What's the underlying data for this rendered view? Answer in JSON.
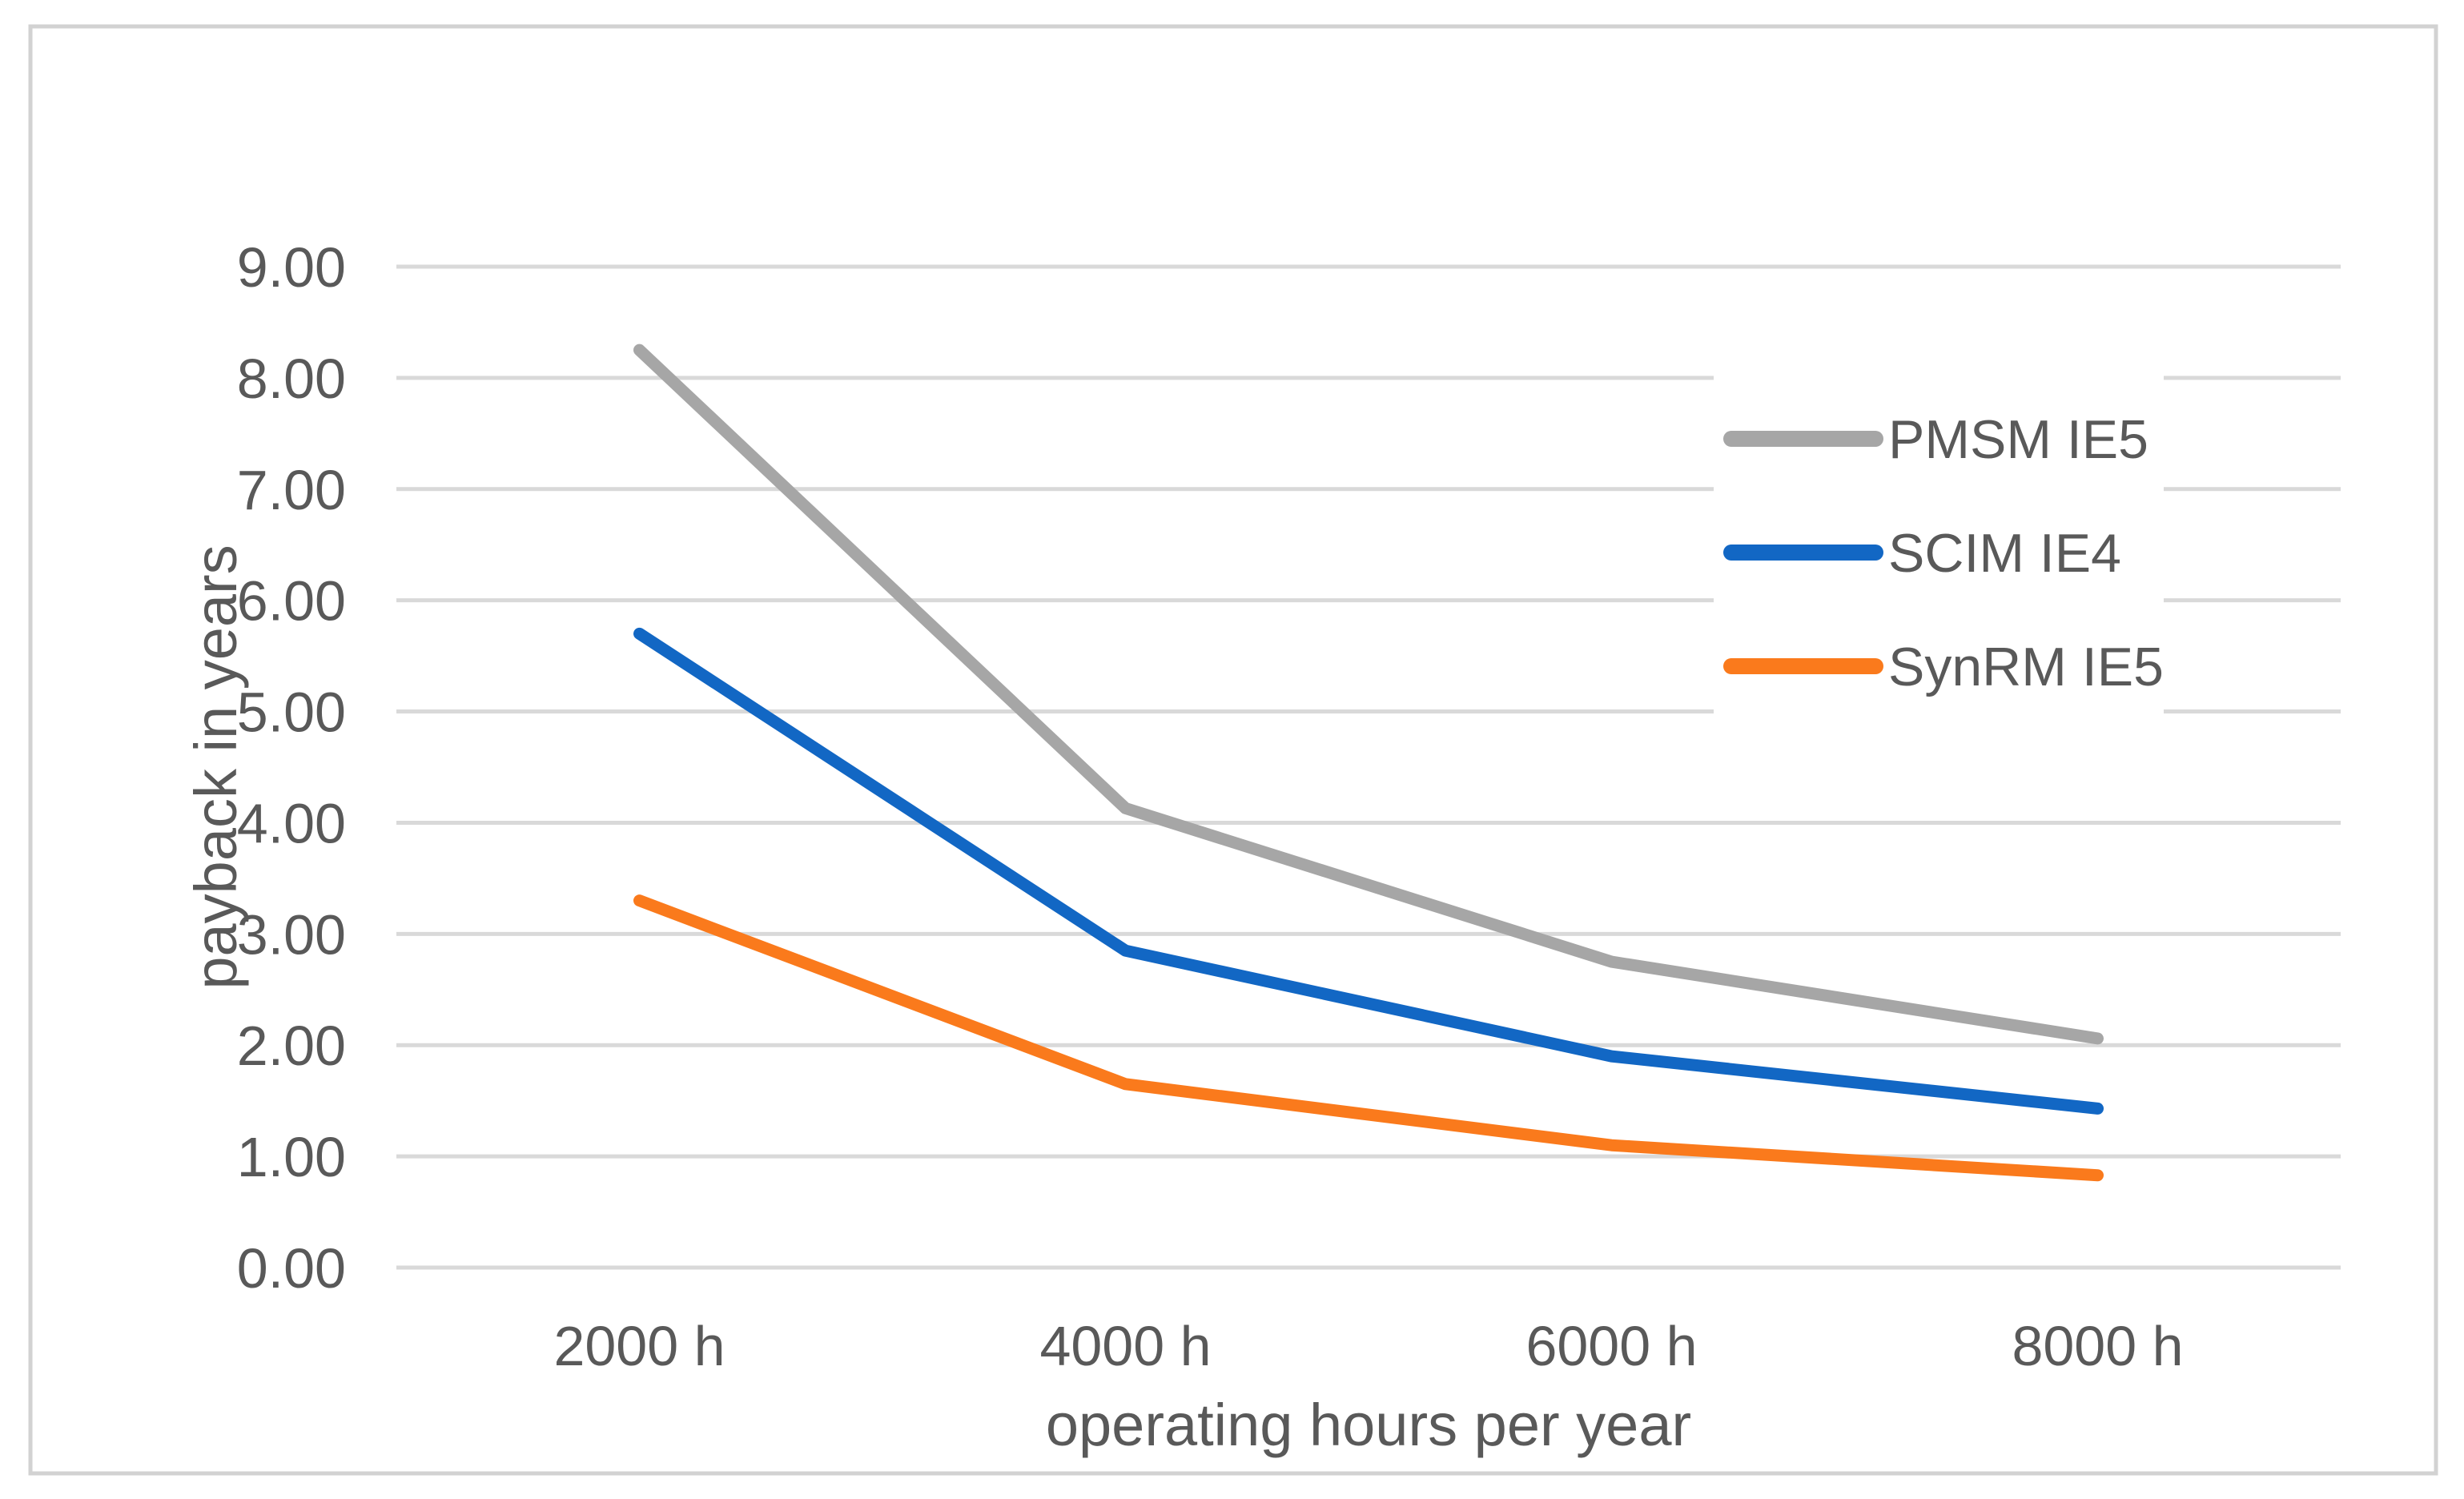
{
  "figure": {
    "background": "#FFFFFF",
    "border_color": "#D2D2D2"
  },
  "colors": {
    "gridline": "#D9D9D9",
    "axis_text": "#595959",
    "legend_background": "#FFFFFF"
  },
  "chart_data": {
    "type": "line",
    "title": "",
    "xlabel": "operating hours per year",
    "ylabel": "payback in years",
    "categories": [
      "2000 h",
      "4000 h",
      "6000 h",
      "8000 h"
    ],
    "series": [
      {
        "name": "PMSM IE5",
        "color": "#A6A6A6",
        "values": [
          8.25,
          4.13,
          2.75,
          2.06
        ]
      },
      {
        "name": "SCIM IE4",
        "color": "#1267C4",
        "values": [
          5.7,
          2.85,
          1.9,
          1.43
        ]
      },
      {
        "name": "SynRM IE5",
        "color": "#FA7A1C",
        "values": [
          3.3,
          1.65,
          1.1,
          0.83
        ]
      }
    ],
    "ylim": [
      0,
      9
    ],
    "ytick_step": 1,
    "ytick_labels": [
      "0.00",
      "1.00",
      "2.00",
      "3.00",
      "4.00",
      "5.00",
      "6.00",
      "7.00",
      "8.00",
      "9.00"
    ],
    "grid": "horizontal",
    "legend_position": "inside-right"
  }
}
